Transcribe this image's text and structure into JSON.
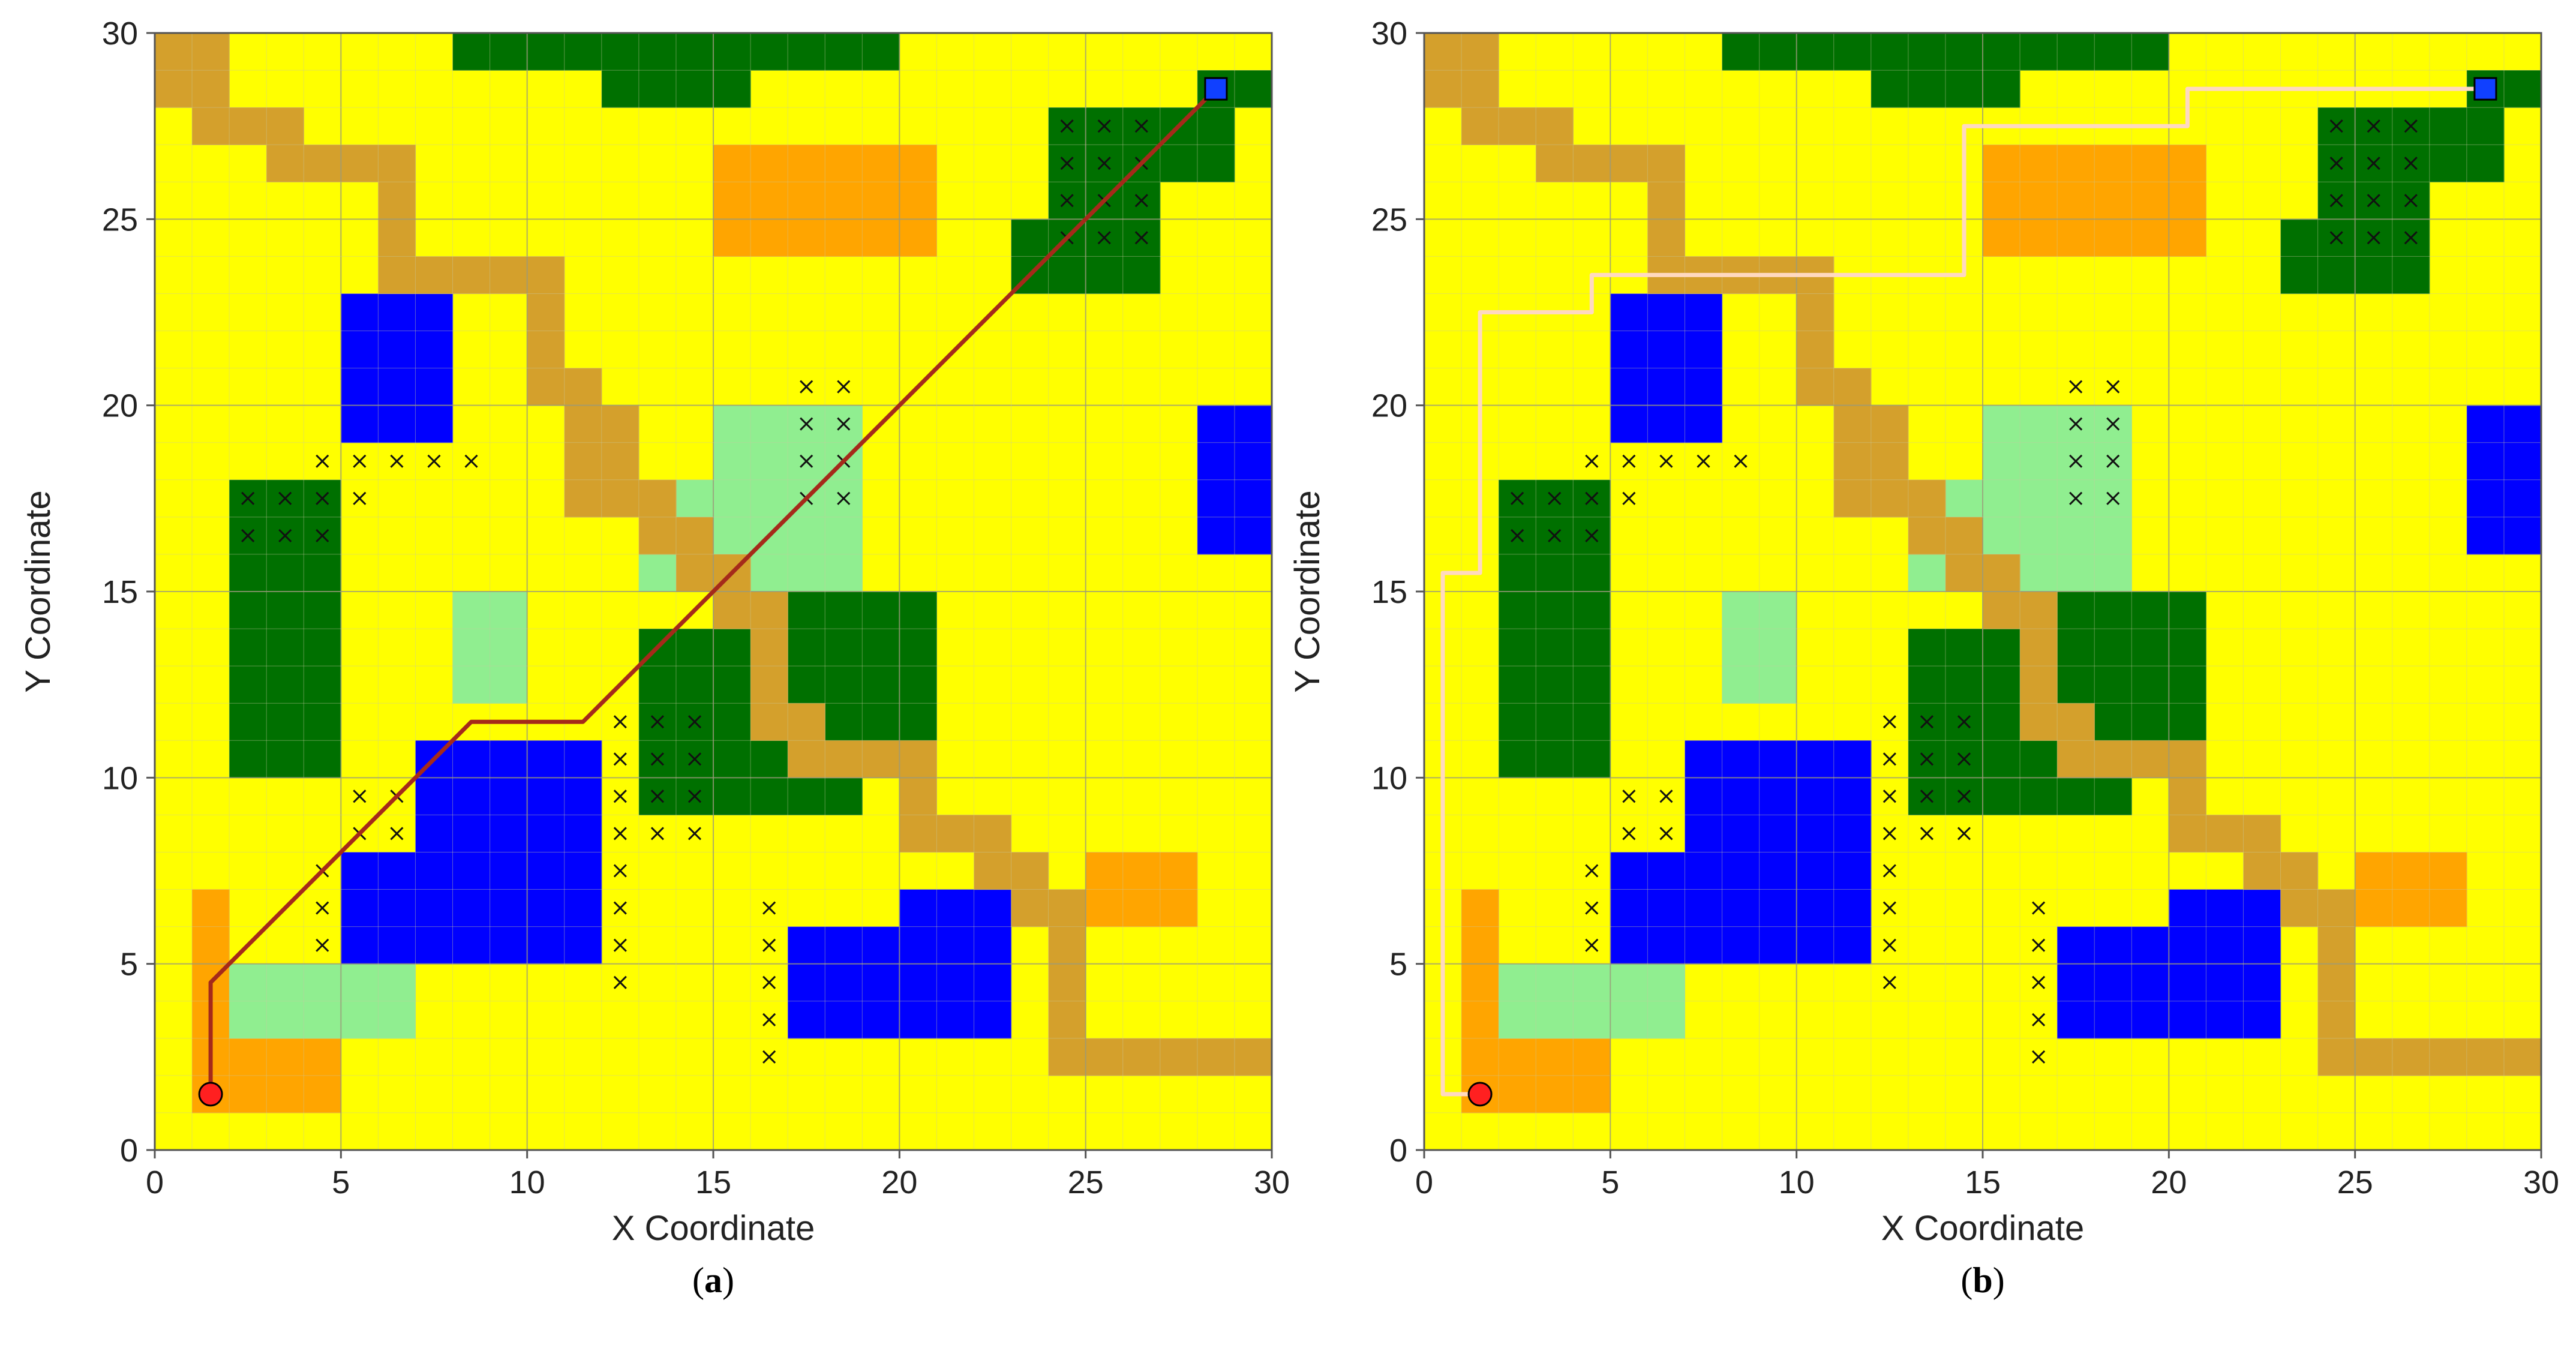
{
  "colors": {
    "free": "#ffff00",
    "green": "#007000",
    "light_green": "#90ee90",
    "blue": "#0000ff",
    "orange": "#ffa500",
    "road": "#d4a02c",
    "gridline": "#c8c8a0",
    "start": "#ff2020",
    "goal": "#1040ff",
    "path_a": "#a52a1a",
    "path_b": "#ffd9c0"
  },
  "chart_data": [
    {
      "panel_label_parts": [
        "(",
        "a",
        ")"
      ],
      "type": "grid_map",
      "xlabel": "X Coordinate",
      "ylabel": "Y Coordinate",
      "xlim": [
        0,
        30
      ],
      "ylim": [
        0,
        30
      ],
      "xticks": [
        "0",
        "5",
        "10",
        "15",
        "20",
        "25",
        "30"
      ],
      "yticks": [
        "0",
        "5",
        "10",
        "15",
        "20",
        "25",
        "30"
      ],
      "grid": true,
      "start": [
        1.5,
        1.5
      ],
      "goal": [
        28.5,
        28.5
      ],
      "path_color_key": "path_a",
      "path": [
        [
          1.5,
          1.5
        ],
        [
          1.5,
          4.5
        ],
        [
          8.5,
          11.5
        ],
        [
          11.5,
          11.5
        ],
        [
          28.5,
          28.5
        ]
      ]
    },
    {
      "panel_label_parts": [
        "(",
        "b",
        ")"
      ],
      "type": "grid_map",
      "xlabel": "X Coordinate",
      "ylabel": "Y Coordinate",
      "xlim": [
        0,
        30
      ],
      "ylim": [
        0,
        30
      ],
      "xticks": [
        "0",
        "5",
        "10",
        "15",
        "20",
        "25",
        "30"
      ],
      "yticks": [
        "0",
        "5",
        "10",
        "15",
        "20",
        "25",
        "30"
      ],
      "grid": true,
      "start": [
        1.5,
        1.5
      ],
      "goal": [
        28.5,
        28.5
      ],
      "path_color_key": "path_b",
      "path": [
        [
          1.5,
          1.5
        ],
        [
          0.5,
          1.5
        ],
        [
          0.5,
          15.5
        ],
        [
          1.5,
          15.5
        ],
        [
          1.5,
          22.5
        ],
        [
          4.5,
          22.5
        ],
        [
          4.5,
          23.5
        ],
        [
          14.5,
          23.5
        ],
        [
          14.5,
          27.5
        ],
        [
          20.5,
          27.5
        ],
        [
          20.5,
          28.5
        ],
        [
          28.5,
          28.5
        ]
      ]
    }
  ],
  "map_cells": {
    "green": [
      [
        8,
        29,
        20,
        30
      ],
      [
        12,
        28,
        16,
        30
      ],
      [
        24,
        25,
        27,
        28
      ],
      [
        27,
        26,
        29,
        28
      ],
      [
        28,
        28,
        30,
        29
      ],
      [
        23,
        23,
        27,
        25
      ],
      [
        2,
        10,
        5,
        18
      ],
      [
        13,
        9,
        16,
        14
      ],
      [
        16,
        9,
        19,
        15
      ],
      [
        19,
        11,
        21,
        15
      ]
    ],
    "light_green": [
      [
        15,
        15,
        19,
        20
      ],
      [
        14,
        17,
        15,
        18
      ],
      [
        13,
        15,
        14,
        16
      ],
      [
        8,
        12,
        10,
        15
      ],
      [
        2,
        3,
        7,
        5
      ]
    ],
    "blue": [
      [
        5,
        19,
        8,
        23
      ],
      [
        28,
        16,
        30,
        20
      ],
      [
        7,
        8,
        12,
        11
      ],
      [
        11,
        10,
        12,
        11
      ],
      [
        5,
        5,
        12,
        8
      ],
      [
        17,
        3,
        23,
        6
      ],
      [
        20,
        6,
        23,
        7
      ]
    ],
    "orange": [
      [
        15,
        24,
        21,
        27
      ],
      [
        1,
        1,
        2,
        7
      ],
      [
        1,
        1,
        5,
        3
      ],
      [
        25,
        6,
        28,
        8
      ]
    ],
    "road": [
      [
        0,
        28,
        2,
        30
      ],
      [
        1,
        27,
        4,
        28
      ],
      [
        3,
        26,
        7,
        27
      ],
      [
        6,
        24,
        7,
        26
      ],
      [
        6,
        23,
        11,
        24
      ],
      [
        10,
        21,
        11,
        23
      ],
      [
        10,
        20,
        12,
        21
      ],
      [
        11,
        18,
        13,
        20
      ],
      [
        11,
        17,
        14,
        18
      ],
      [
        13,
        16,
        15,
        17
      ],
      [
        14,
        15,
        16,
        16
      ],
      [
        15,
        14,
        17,
        15
      ],
      [
        16,
        12,
        17,
        14
      ],
      [
        16,
        11,
        18,
        12
      ],
      [
        17,
        10,
        21,
        11
      ],
      [
        20,
        9,
        21,
        10
      ],
      [
        20,
        8,
        23,
        9
      ],
      [
        22,
        7,
        24,
        8
      ],
      [
        23,
        6,
        25,
        7
      ],
      [
        24,
        3,
        25,
        6
      ],
      [
        24,
        2,
        30,
        3
      ]
    ]
  },
  "x_marks": [
    [
      24.5,
      27.5
    ],
    [
      25.5,
      27.5
    ],
    [
      26.5,
      27.5
    ],
    [
      24.5,
      26.5
    ],
    [
      25.5,
      26.5
    ],
    [
      26.5,
      26.5
    ],
    [
      24.5,
      25.5
    ],
    [
      25.5,
      25.5
    ],
    [
      26.5,
      25.5
    ],
    [
      24.5,
      24.5
    ],
    [
      25.5,
      24.5
    ],
    [
      26.5,
      24.5
    ],
    [
      17.5,
      20.5
    ],
    [
      18.5,
      20.5
    ],
    [
      17.5,
      19.5
    ],
    [
      18.5,
      19.5
    ],
    [
      17.5,
      18.5
    ],
    [
      18.5,
      18.5
    ],
    [
      17.5,
      17.5
    ],
    [
      18.5,
      17.5
    ],
    [
      4.5,
      18.5
    ],
    [
      5.5,
      18.5
    ],
    [
      6.5,
      18.5
    ],
    [
      7.5,
      18.5
    ],
    [
      8.5,
      18.5
    ],
    [
      5.5,
      17.5
    ],
    [
      2.5,
      17.5
    ],
    [
      3.5,
      17.5
    ],
    [
      4.5,
      17.5
    ],
    [
      2.5,
      16.5
    ],
    [
      3.5,
      16.5
    ],
    [
      4.5,
      16.5
    ],
    [
      12.5,
      11.5
    ],
    [
      13.5,
      11.5
    ],
    [
      14.5,
      11.5
    ],
    [
      12.5,
      10.5
    ],
    [
      13.5,
      10.5
    ],
    [
      14.5,
      10.5
    ],
    [
      12.5,
      9.5
    ],
    [
      13.5,
      9.5
    ],
    [
      14.5,
      9.5
    ],
    [
      12.5,
      8.5
    ],
    [
      13.5,
      8.5
    ],
    [
      14.5,
      8.5
    ],
    [
      12.5,
      7.5
    ],
    [
      12.5,
      6.5
    ],
    [
      12.5,
      5.5
    ],
    [
      12.5,
      4.5
    ],
    [
      5.5,
      9.5
    ],
    [
      6.5,
      9.5
    ],
    [
      5.5,
      8.5
    ],
    [
      6.5,
      8.5
    ],
    [
      4.5,
      7.5
    ],
    [
      4.5,
      6.5
    ],
    [
      4.5,
      5.5
    ],
    [
      16.5,
      6.5
    ],
    [
      16.5,
      5.5
    ],
    [
      16.5,
      4.5
    ],
    [
      16.5,
      3.5
    ],
    [
      16.5,
      2.5
    ]
  ]
}
